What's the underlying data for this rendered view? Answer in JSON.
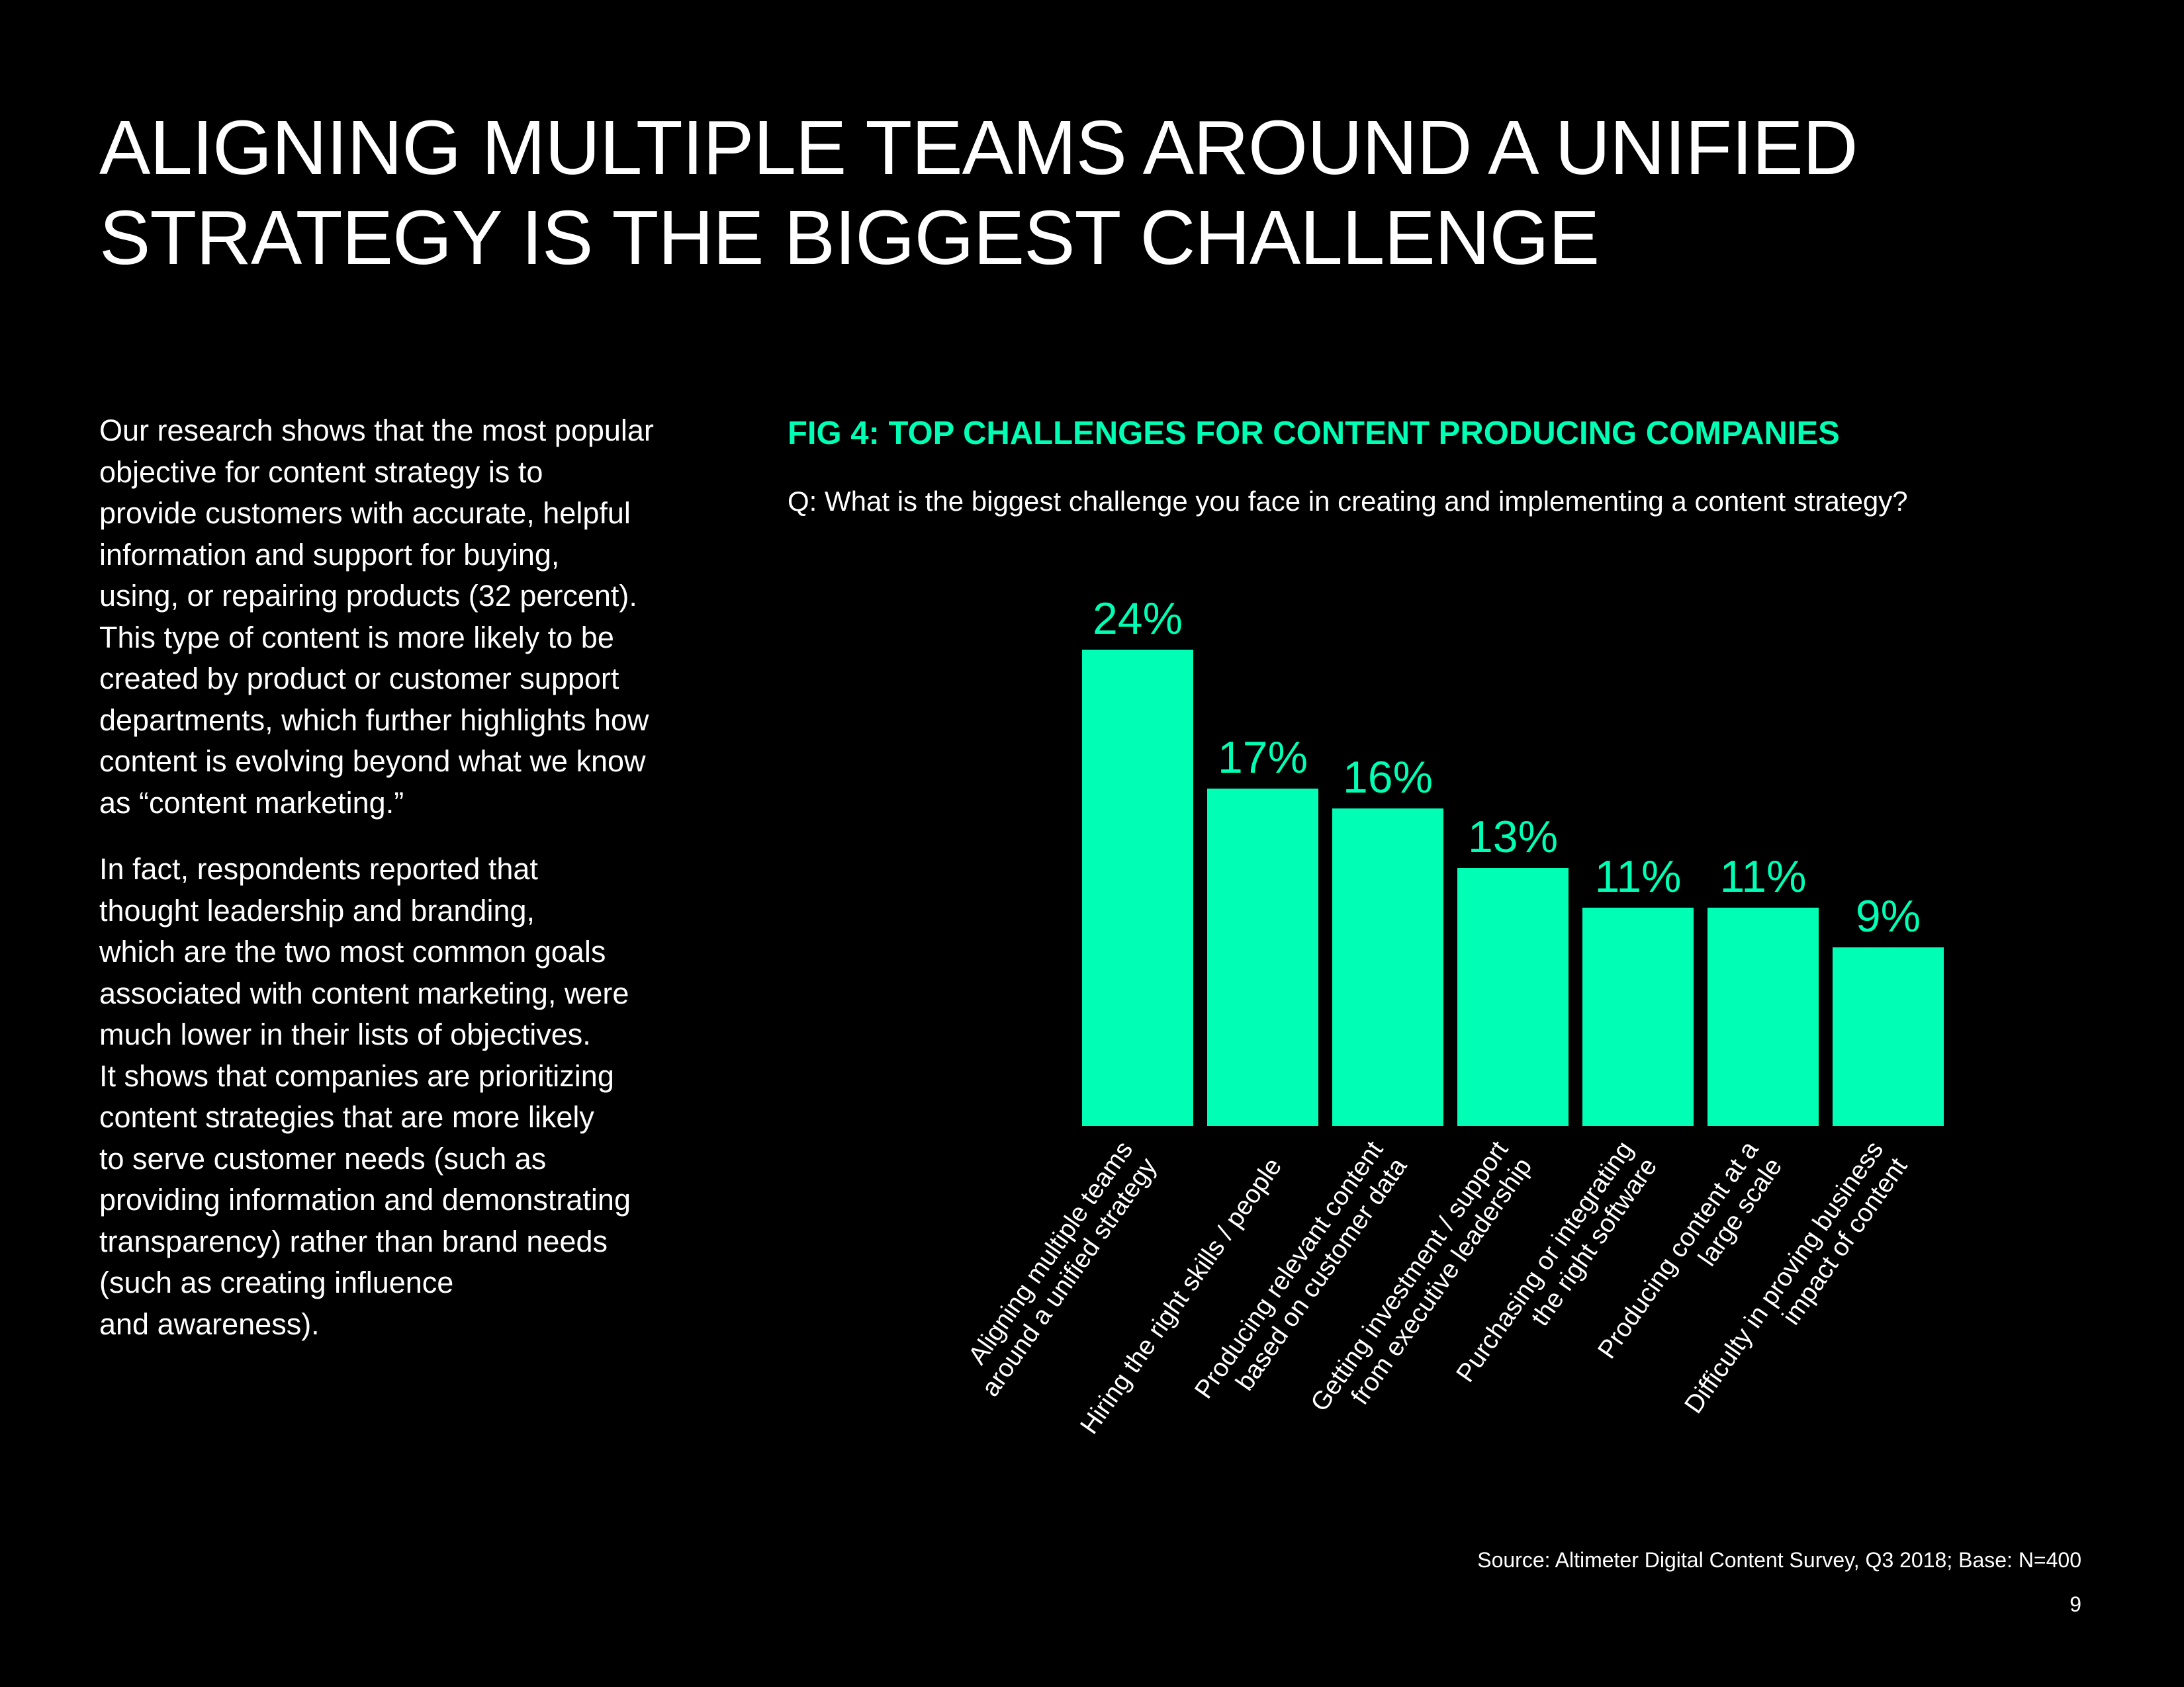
{
  "page": {
    "title_lines": [
      "ALIGNING MULTIPLE TEAMS AROUND A UNIFIED",
      "STRATEGY IS THE BIGGEST CHALLENGE"
    ],
    "body_paragraphs": [
      [
        "Our research shows that the most popular",
        "objective for content strategy is to",
        "provide customers with accurate, helpful",
        "information and support for buying,",
        "using, or repairing products (32 percent).",
        "This type of content is more likely to be",
        "created by product or customer support",
        "departments, which further highlights how",
        "content is evolving beyond what we know",
        "as “content marketing.”"
      ],
      [
        "In fact, respondents reported that",
        "thought leadership and branding,",
        "which are the two most common goals",
        "associated with content marketing, were",
        "much lower in their lists of objectives.",
        "It shows that companies are prioritizing",
        "content strategies that are more likely",
        "to serve customer needs (such as",
        "providing information and demonstrating",
        "transparency) rather than brand needs",
        "(such as creating influence",
        "and awareness)."
      ]
    ],
    "source": "Source: Altimeter Digital Content Survey, Q3 2018; Base: N=400",
    "page_number": "9"
  },
  "colors": {
    "background": "#000000",
    "accent": "#00ffb4",
    "text": "#ffffff"
  },
  "chart_data": {
    "type": "bar",
    "title": "FIG 4: TOP CHALLENGES FOR CONTENT PRODUCING COMPANIES",
    "subtitle": "Q: What is the biggest challenge you face in creating and implementing a content strategy?",
    "categories": [
      [
        "Aligning multiple teams",
        "around a unified strategy"
      ],
      [
        "Hiring the right skills / people"
      ],
      [
        "Producing relevant content",
        "based on customer data"
      ],
      [
        "Getting investment / support",
        "from executive leadership"
      ],
      [
        "Purchasing or integrating",
        "the right software"
      ],
      [
        "Producing content at a",
        "large scale"
      ],
      [
        "Difficulty in proving business",
        "impact of content"
      ]
    ],
    "values": [
      24,
      17,
      16,
      13,
      11,
      11,
      9
    ],
    "value_labels": [
      "24%",
      "17%",
      "16%",
      "13%",
      "11%",
      "11%",
      "9%"
    ],
    "unit": "%",
    "ylim": [
      0,
      24
    ],
    "xlabel": "",
    "ylabel": "",
    "grid": false,
    "legend": "none",
    "bar_color": "#00ffb4"
  }
}
